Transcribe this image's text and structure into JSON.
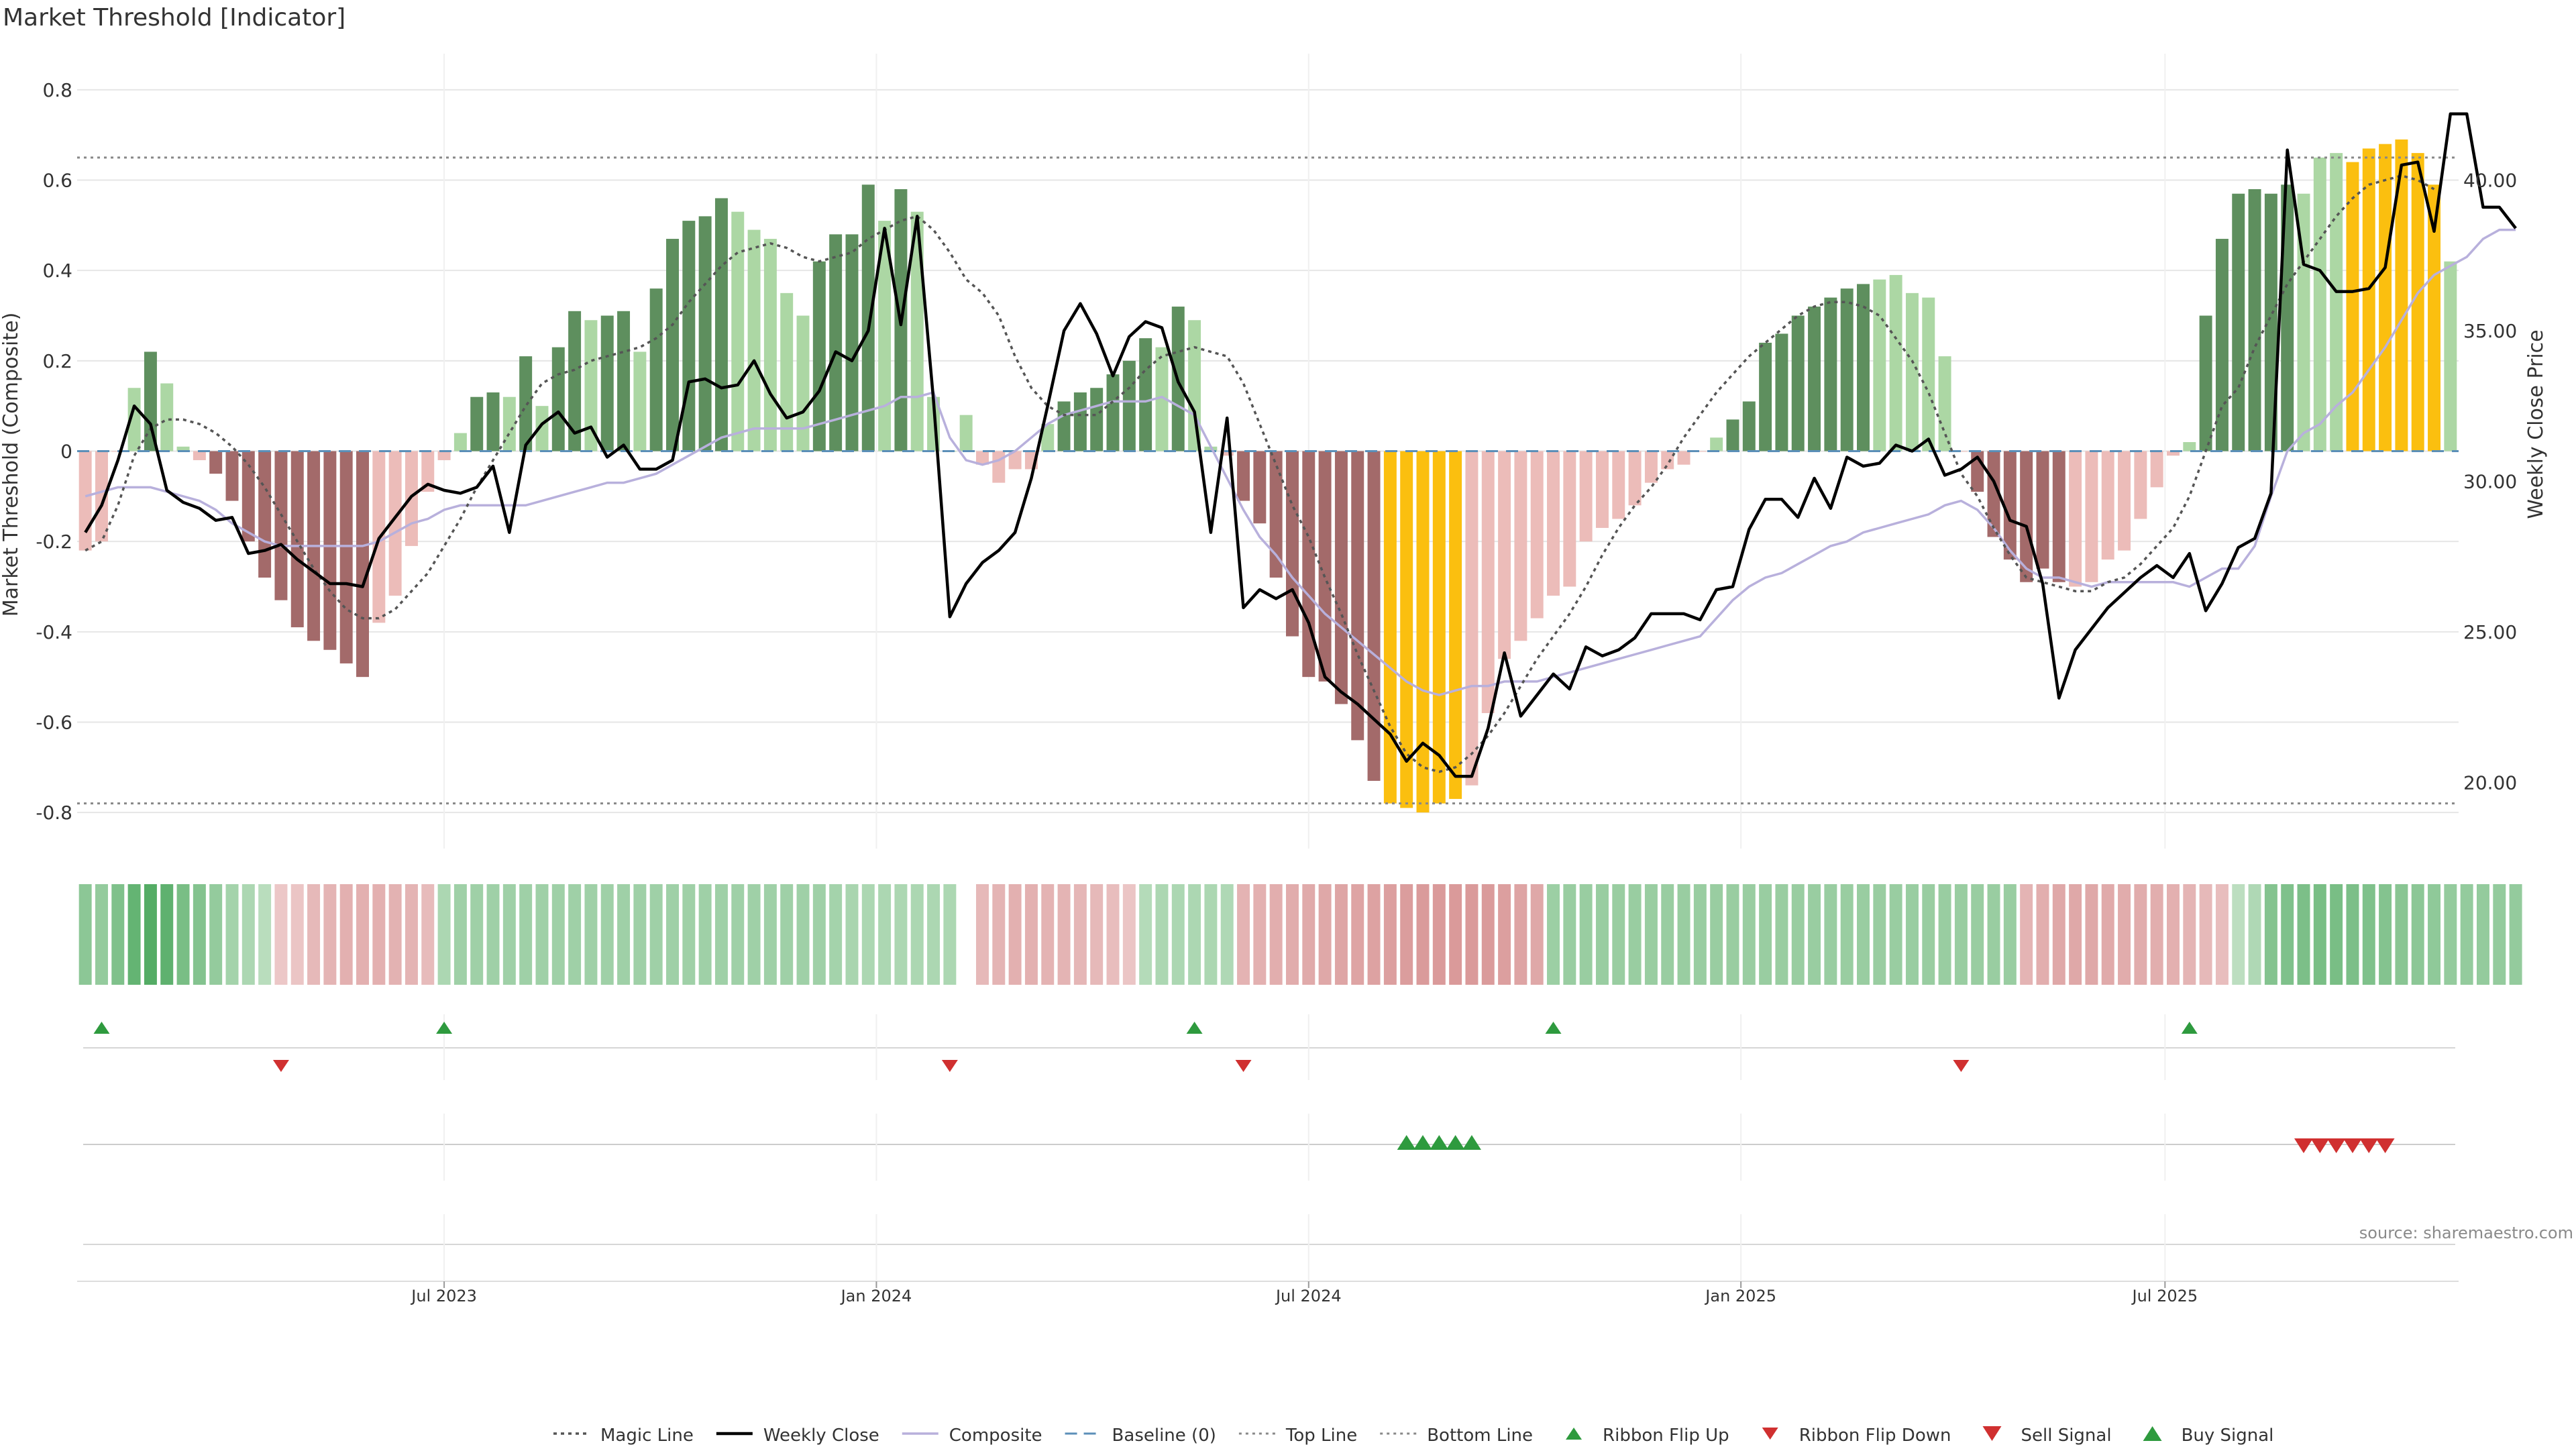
{
  "title": "Market Threshold [Indicator]",
  "source_note": "source: sharemaestro.com",
  "colors": {
    "bull_strong": "#5e8f5e",
    "bull_light": "#acd7a4",
    "bear_strong": "#a36a6a",
    "bear_light": "#ecbcb9",
    "extreme": "#fbbf0f",
    "price_line": "#000000",
    "magic_line": "#555555",
    "composite": "#b8b0dc",
    "baseline": "#5b8fb8",
    "thresholds": "#888888",
    "signal_up": "#2e9a3e",
    "signal_down": "#d03030",
    "text": "#333333",
    "grid": "#e6e6e6"
  },
  "chart_data": {
    "type": "bar",
    "left_axis": {
      "label": "Market Threshold (Composite)",
      "range": [
        -0.88,
        0.88
      ],
      "ticks": [
        "0.8",
        "0.6",
        "0.4",
        "0.2",
        "0",
        "-0.2",
        "-0.4",
        "-0.6",
        "-0.8"
      ],
      "tick_values": [
        0.8,
        0.6,
        0.4,
        0.2,
        0,
        -0.2,
        -0.4,
        -0.6,
        -0.8
      ]
    },
    "right_axis": {
      "label": "Weekly Close Price",
      "range": [
        17.8,
        44.2
      ],
      "ticks": [
        "40.00",
        "35.00",
        "30.00",
        "25.00",
        "20.00"
      ],
      "tick_values": [
        40,
        35,
        30,
        25,
        20
      ]
    },
    "x_axis": {
      "ticks": [
        "Jul 2023",
        "Jan 2024",
        "Jul 2024",
        "Jan 2025",
        "Jul 2025"
      ],
      "tick_index": [
        22,
        48.5,
        75,
        101.5,
        127.5
      ]
    },
    "lines": {
      "top": 0.65,
      "bottom": -0.78,
      "baseline": 0
    },
    "bars": [
      -0.22,
      -0.2,
      0,
      0.14,
      0.22,
      0.15,
      0.01,
      -0.02,
      -0.05,
      -0.11,
      -0.2,
      -0.28,
      -0.33,
      -0.39,
      -0.42,
      -0.44,
      -0.47,
      -0.5,
      -0.38,
      -0.32,
      -0.21,
      -0.09,
      -0.02,
      0.04,
      0.12,
      0.13,
      0.12,
      0.21,
      0.1,
      0.23,
      0.31,
      0.29,
      0.3,
      0.31,
      0.22,
      0.36,
      0.47,
      0.51,
      0.52,
      0.56,
      0.53,
      0.49,
      0.47,
      0.35,
      0.3,
      0.42,
      0.48,
      0.48,
      0.59,
      0.51,
      0.58,
      0.53,
      0.12,
      0,
      0.08,
      -0.03,
      -0.07,
      -0.04,
      -0.04,
      0.06,
      0.11,
      0.13,
      0.14,
      0.17,
      0.2,
      0.25,
      0.23,
      0.32,
      0.29,
      0.01,
      -0.01,
      -0.11,
      -0.16,
      -0.28,
      -0.41,
      -0.5,
      -0.51,
      -0.56,
      -0.64,
      -0.73,
      -0.78,
      -0.79,
      -0.8,
      -0.78,
      -0.77,
      -0.74,
      -0.58,
      -0.46,
      -0.42,
      -0.37,
      -0.32,
      -0.3,
      -0.2,
      -0.17,
      -0.15,
      -0.12,
      -0.07,
      -0.04,
      -0.03,
      0,
      0.03,
      0.07,
      0.11,
      0.24,
      0.26,
      0.3,
      0.32,
      0.34,
      0.36,
      0.37,
      0.38,
      0.39,
      0.35,
      0.34,
      0.21,
      0,
      -0.09,
      -0.19,
      -0.24,
      -0.29,
      -0.26,
      -0.29,
      -0.3,
      -0.29,
      -0.24,
      -0.22,
      -0.15,
      -0.08,
      -0.01,
      0.02,
      0.3,
      0.47,
      0.57,
      0.58,
      0.57,
      0.59,
      0.57,
      0.65,
      0.66,
      0.64,
      0.67,
      0.68,
      0.69,
      0.66,
      0.59,
      0.42
    ],
    "bar_class": [
      "BL",
      "BL",
      "BL",
      "GL",
      "GS",
      "GL",
      "GL",
      "BL",
      "BS",
      "BS",
      "BS",
      "BS",
      "BS",
      "BS",
      "BS",
      "BS",
      "BS",
      "BS",
      "BL",
      "BL",
      "BL",
      "BL",
      "BL",
      "GL",
      "GS",
      "GS",
      "GL",
      "GS",
      "GL",
      "GS",
      "GS",
      "GL",
      "GS",
      "GS",
      "GL",
      "GS",
      "GS",
      "GS",
      "GS",
      "GS",
      "GL",
      "GL",
      "GL",
      "GL",
      "GL",
      "GS",
      "GS",
      "GS",
      "GS",
      "GL",
      "GS",
      "GL",
      "GL",
      "GL",
      "GL",
      "BL",
      "BL",
      "BL",
      "BL",
      "GL",
      "GS",
      "GS",
      "GS",
      "GS",
      "GS",
      "GS",
      "GL",
      "GS",
      "GL",
      "GL",
      "BL",
      "BS",
      "BS",
      "BS",
      "BS",
      "BS",
      "BS",
      "BS",
      "BS",
      "BS",
      "Y",
      "Y",
      "Y",
      "Y",
      "Y",
      "BL",
      "BL",
      "BL",
      "BL",
      "BL",
      "BL",
      "BL",
      "BL",
      "BL",
      "BL",
      "BL",
      "BL",
      "BL",
      "BL",
      "BL",
      "GL",
      "GS",
      "GS",
      "GS",
      "GS",
      "GS",
      "GS",
      "GS",
      "GS",
      "GS",
      "GL",
      "GL",
      "GL",
      "GL",
      "GL",
      "BL",
      "BS",
      "BS",
      "BS",
      "BS",
      "BS",
      "BS",
      "BL",
      "BL",
      "BL",
      "BL",
      "BL",
      "BL",
      "BL",
      "GL",
      "GS",
      "GS",
      "GS",
      "GS",
      "GS",
      "GS",
      "GL",
      "GL",
      "GL",
      "Y",
      "Y",
      "Y",
      "Y",
      "Y",
      "Y",
      "GL",
      "GL"
    ],
    "series": [
      {
        "name": "Weekly Close",
        "axis": "right",
        "values": [
          28.3,
          29.2,
          30.7,
          32.5,
          31.9,
          29.7,
          29.3,
          29.1,
          28.7,
          28.8,
          27.6,
          27.7,
          27.9,
          27.4,
          27,
          26.6,
          26.6,
          26.5,
          28.1,
          28.8,
          29.5,
          29.9,
          29.7,
          29.6,
          29.8,
          30.5,
          28.3,
          31.2,
          31.9,
          32.3,
          31.6,
          31.8,
          30.8,
          31.2,
          30.4,
          30.4,
          30.7,
          33.3,
          33.4,
          33.1,
          33.2,
          34,
          32.9,
          32.1,
          32.3,
          33,
          34.3,
          34,
          35,
          38.4,
          35.2,
          38.8,
          32.7,
          25.5,
          26.6,
          27.3,
          27.7,
          28.3,
          30.1,
          32.5,
          35,
          35.9,
          34.9,
          33.5,
          34.8,
          35.3,
          35.1,
          33.3,
          32.3,
          28.3,
          32.1,
          25.8,
          26.4,
          26.1,
          26.4,
          25.3,
          23.5,
          23,
          22.6,
          22.1,
          21.6,
          20.7,
          21.3,
          20.9,
          20.2,
          20.2,
          21.8,
          24.3,
          22.2,
          22.9,
          23.6,
          23.1,
          24.5,
          24.2,
          24.4,
          24.8,
          25.6,
          25.6,
          25.6,
          25.4,
          26.4,
          26.5,
          28.4,
          29.4,
          29.4,
          28.8,
          30.1,
          29.1,
          30.8,
          30.5,
          30.6,
          31.2,
          31,
          31.4,
          30.2,
          30.4,
          30.8,
          30,
          28.7,
          28.5,
          26.6,
          22.8,
          24.4,
          25.1,
          25.8,
          26.3,
          26.8,
          27.2,
          26.8,
          27.6,
          25.7,
          26.6,
          27.8,
          28.1,
          29.6,
          41,
          37.2,
          37,
          36.3,
          36.3,
          36.4,
          37.1,
          40.5,
          40.6,
          38.3,
          42.2,
          42.2,
          39.1,
          39.1,
          38.4
        ],
        "outliers": {
          "66": 35.0
        }
      },
      {
        "name": "Magic Line",
        "axis": "left",
        "values": [
          -0.22,
          -0.2,
          -0.12,
          -0.01,
          0.05,
          0.07,
          0.07,
          0.06,
          0.04,
          0.01,
          -0.03,
          -0.08,
          -0.14,
          -0.2,
          -0.26,
          -0.31,
          -0.35,
          -0.37,
          -0.37,
          -0.35,
          -0.31,
          -0.27,
          -0.21,
          -0.15,
          -0.08,
          -0.02,
          0.04,
          0.1,
          0.15,
          0.17,
          0.18,
          0.2,
          0.21,
          0.22,
          0.23,
          0.25,
          0.28,
          0.33,
          0.37,
          0.41,
          0.44,
          0.45,
          0.46,
          0.45,
          0.43,
          0.42,
          0.43,
          0.44,
          0.47,
          0.49,
          0.51,
          0.52,
          0.49,
          0.44,
          0.38,
          0.35,
          0.3,
          0.21,
          0.14,
          0.1,
          0.08,
          0.08,
          0.08,
          0.11,
          0.14,
          0.18,
          0.21,
          0.22,
          0.23,
          0.22,
          0.21,
          0.15,
          0.06,
          -0.03,
          -0.12,
          -0.19,
          -0.28,
          -0.36,
          -0.45,
          -0.53,
          -0.61,
          -0.67,
          -0.7,
          -0.71,
          -0.7,
          -0.67,
          -0.63,
          -0.58,
          -0.52,
          -0.46,
          -0.41,
          -0.36,
          -0.3,
          -0.23,
          -0.17,
          -0.12,
          -0.08,
          -0.03,
          0.03,
          0.08,
          0.13,
          0.17,
          0.21,
          0.24,
          0.27,
          0.3,
          0.32,
          0.33,
          0.33,
          0.32,
          0.3,
          0.25,
          0.2,
          0.13,
          0.04,
          -0.05,
          -0.1,
          -0.17,
          -0.23,
          -0.28,
          -0.29,
          -0.3,
          -0.31,
          -0.31,
          -0.29,
          -0.28,
          -0.25,
          -0.21,
          -0.17,
          -0.1,
          0,
          0.1,
          0.14,
          0.23,
          0.3,
          0.37,
          0.42,
          0.47,
          0.52,
          0.56,
          0.59,
          0.6,
          0.61,
          0.6,
          0.58
        ],
        "style": "dotted"
      },
      {
        "name": "Composite",
        "axis": "left",
        "values": [
          -0.1,
          -0.09,
          -0.08,
          -0.08,
          -0.08,
          -0.09,
          -0.1,
          -0.11,
          -0.13,
          -0.16,
          -0.18,
          -0.2,
          -0.21,
          -0.21,
          -0.21,
          -0.21,
          -0.21,
          -0.21,
          -0.2,
          -0.18,
          -0.16,
          -0.15,
          -0.13,
          -0.12,
          -0.12,
          -0.12,
          -0.12,
          -0.12,
          -0.11,
          -0.1,
          -0.09,
          -0.08,
          -0.07,
          -0.07,
          -0.06,
          -0.05,
          -0.03,
          -0.01,
          0.01,
          0.03,
          0.04,
          0.05,
          0.05,
          0.05,
          0.05,
          0.06,
          0.07,
          0.08,
          0.09,
          0.1,
          0.12,
          0.12,
          0.13,
          0.03,
          -0.02,
          -0.03,
          -0.02,
          0,
          0.03,
          0.06,
          0.08,
          0.09,
          0.1,
          0.11,
          0.11,
          0.11,
          0.12,
          0.1,
          0.08,
          0.01,
          -0.06,
          -0.13,
          -0.19,
          -0.23,
          -0.28,
          -0.32,
          -0.36,
          -0.39,
          -0.42,
          -0.45,
          -0.48,
          -0.51,
          -0.53,
          -0.54,
          -0.53,
          -0.52,
          -0.52,
          -0.51,
          -0.51,
          -0.51,
          -0.5,
          -0.49,
          -0.48,
          -0.47,
          -0.46,
          -0.45,
          -0.44,
          -0.43,
          -0.42,
          -0.41,
          -0.37,
          -0.33,
          -0.3,
          -0.28,
          -0.27,
          -0.25,
          -0.23,
          -0.21,
          -0.2,
          -0.18,
          -0.17,
          -0.16,
          -0.15,
          -0.14,
          -0.12,
          -0.11,
          -0.13,
          -0.17,
          -0.22,
          -0.26,
          -0.28,
          -0.28,
          -0.29,
          -0.3,
          -0.29,
          -0.29,
          -0.29,
          -0.29,
          -0.29,
          -0.3,
          -0.28,
          -0.26,
          -0.26,
          -0.21,
          -0.1,
          0,
          0.04,
          0.06,
          0.1,
          0.13,
          0.18,
          0.23,
          0.29,
          0.35,
          0.39,
          0.41,
          0.43,
          0.47,
          0.49,
          0.49
        ],
        "style": "solid"
      }
    ],
    "ribbon": [
      0.5,
      0.45,
      0.58,
      0.75,
      0.85,
      0.78,
      0.62,
      0.55,
      0.45,
      0.35,
      0.3,
      0.22,
      -0.18,
      -0.2,
      -0.35,
      -0.4,
      -0.45,
      -0.45,
      -0.45,
      -0.43,
      -0.4,
      -0.32,
      0.3,
      0.38,
      0.38,
      0.38,
      0.38,
      0.38,
      0.38,
      0.38,
      0.38,
      0.38,
      0.38,
      0.38,
      0.38,
      0.38,
      0.38,
      0.38,
      0.38,
      0.38,
      0.38,
      0.38,
      0.38,
      0.38,
      0.38,
      0.38,
      0.35,
      0.32,
      0.3,
      0.3,
      0.3,
      0.3,
      0.3,
      0.3,
      null,
      -0.35,
      -0.4,
      -0.45,
      -0.45,
      -0.42,
      -0.4,
      -0.38,
      -0.35,
      -0.3,
      -0.2,
      0.25,
      0.3,
      0.3,
      0.3,
      0.3,
      0.28,
      -0.42,
      -0.45,
      -0.48,
      -0.5,
      -0.52,
      -0.55,
      -0.58,
      -0.6,
      -0.62,
      -0.65,
      -0.68,
      -0.7,
      -0.72,
      -0.72,
      -0.72,
      -0.7,
      -0.65,
      -0.6,
      -0.55,
      0.4,
      0.42,
      0.42,
      0.42,
      0.42,
      0.42,
      0.42,
      0.42,
      0.42,
      0.42,
      0.42,
      0.42,
      0.42,
      0.42,
      0.42,
      0.42,
      0.42,
      0.42,
      0.42,
      0.42,
      0.42,
      0.42,
      0.42,
      0.42,
      0.42,
      0.42,
      0.42,
      0.42,
      0.42,
      -0.4,
      -0.48,
      -0.55,
      -0.55,
      -0.55,
      -0.52,
      -0.5,
      -0.5,
      -0.48,
      -0.45,
      -0.4,
      -0.35,
      -0.3,
      0.2,
      0.28,
      0.55,
      0.58,
      0.6,
      0.62,
      0.62,
      0.6,
      0.58,
      0.55,
      0.52,
      0.5,
      0.48,
      0.45,
      0.45,
      0.45,
      0.45,
      0.45
    ],
    "ribbon_flip_up": [
      1,
      22,
      68,
      90,
      129
    ],
    "ribbon_flip_down": [
      12,
      53,
      71,
      115
    ],
    "buy_signal": [
      81,
      82,
      83,
      84,
      85
    ],
    "sell_signal": [
      136,
      137,
      138,
      139,
      140,
      141
    ],
    "legend": [
      {
        "label": "Magic Line",
        "kind": "dotted"
      },
      {
        "label": "Weekly Close",
        "kind": "solid-black"
      },
      {
        "label": "Composite",
        "kind": "solid-lavender"
      },
      {
        "label": "Baseline (0)",
        "kind": "dashed-blue"
      },
      {
        "label": "Top Line",
        "kind": "dotted-light"
      },
      {
        "label": "Bottom Line",
        "kind": "dotted-light"
      },
      {
        "label": "Ribbon Flip Up",
        "kind": "tri-up-small"
      },
      {
        "label": "Ribbon Flip Down",
        "kind": "tri-down-small"
      },
      {
        "label": "Sell Signal",
        "kind": "tri-down-big"
      },
      {
        "label": "Buy Signal",
        "kind": "tri-up-big"
      }
    ],
    "legend_position": "bottom-center"
  }
}
